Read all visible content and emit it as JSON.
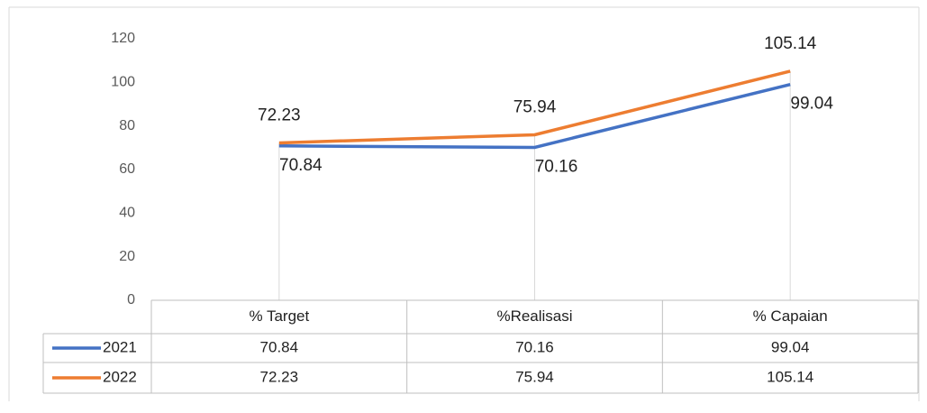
{
  "chart_data": {
    "type": "line",
    "categories": [
      "% Target",
      "%Realisasi",
      "% Capaian"
    ],
    "series": [
      {
        "name": "2021",
        "color": "#4472c4",
        "values": [
          70.84,
          70.16,
          99.04
        ]
      },
      {
        "name": "2022",
        "color": "#ed7d31",
        "values": [
          72.23,
          75.94,
          105.14
        ]
      }
    ],
    "ylim": [
      0,
      120
    ],
    "yticks": [
      0,
      20,
      40,
      60,
      80,
      100,
      120
    ]
  }
}
